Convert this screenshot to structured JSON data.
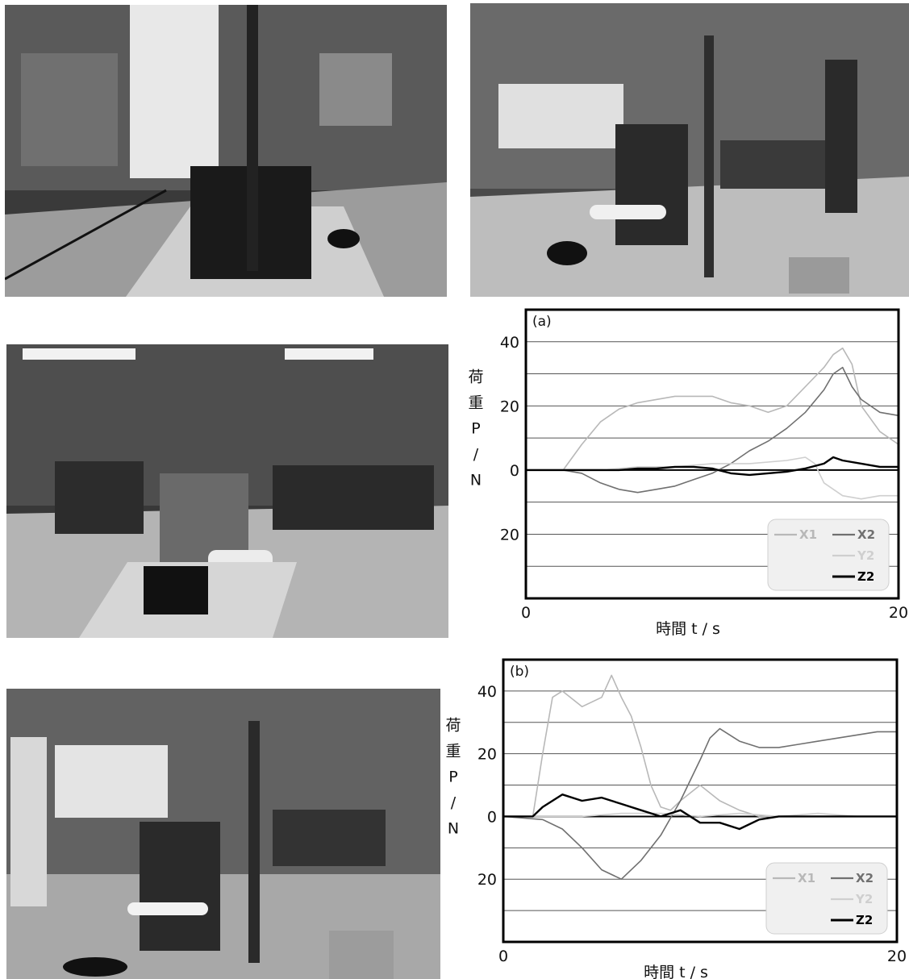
{
  "chart_data": [
    {
      "type": "line",
      "panel_label": "(a)",
      "xlabel": "時間 t/s",
      "ylabel": "荷重 P/N",
      "xlim": [
        0,
        20
      ],
      "ylim": [
        -40,
        50
      ],
      "x_tick_labels": [
        "0",
        "20"
      ],
      "y_tick_labels": [
        "40",
        "20",
        "0",
        "20"
      ],
      "y_tick_values": [
        40,
        20,
        0,
        -20
      ],
      "grid": true,
      "legend_position": "bottom-right",
      "series": [
        {
          "name": "X1",
          "color": "#b8b8b8",
          "width": 1.6,
          "x": [
            0,
            2,
            3,
            4,
            5,
            6,
            7,
            8,
            9,
            10,
            11,
            12,
            13,
            14,
            15,
            16,
            16.5,
            17,
            17.5,
            18,
            19,
            20
          ],
          "y": [
            0,
            0,
            8,
            15,
            19,
            21,
            22,
            23,
            23,
            23,
            21,
            20,
            18,
            20,
            26,
            32,
            36,
            38,
            33,
            20,
            12,
            8
          ]
        },
        {
          "name": "X2",
          "color": "#707070",
          "width": 1.6,
          "x": [
            0,
            2,
            3,
            4,
            5,
            6,
            7,
            8,
            9,
            10,
            11,
            12,
            13,
            14,
            15,
            16,
            16.5,
            17,
            17.5,
            18,
            19,
            20
          ],
          "y": [
            0,
            0,
            -1,
            -4,
            -6,
            -7,
            -6,
            -5,
            -3,
            -1,
            2,
            6,
            9,
            13,
            18,
            25,
            30,
            32,
            26,
            22,
            18,
            17
          ]
        },
        {
          "name": "Y2",
          "color": "#cfcfcf",
          "width": 1.6,
          "x": [
            0,
            2,
            4,
            6,
            8,
            10,
            12,
            14,
            15,
            15.5,
            16,
            17,
            18,
            19,
            20
          ],
          "y": [
            0,
            0,
            0,
            1,
            1,
            2,
            2,
            3,
            4,
            2,
            -4,
            -8,
            -9,
            -8,
            -8
          ]
        },
        {
          "name": "Z2",
          "color": "#000000",
          "width": 2.4,
          "x": [
            0,
            2,
            3,
            4,
            5,
            6,
            7,
            8,
            9,
            10,
            11,
            12,
            13,
            14,
            15,
            16,
            16.5,
            17,
            18,
            19,
            20
          ],
          "y": [
            0,
            0,
            0,
            0,
            0,
            0.5,
            0.5,
            1,
            1,
            0.5,
            -1,
            -1.5,
            -1,
            -0.5,
            0.5,
            2,
            4,
            3,
            2,
            1,
            1
          ]
        }
      ],
      "legend_entries": [
        "X1",
        "X2",
        "Y2",
        "Z2"
      ]
    },
    {
      "type": "line",
      "panel_label": "(b)",
      "xlabel": "時間 t/s",
      "ylabel": "荷重 P/N",
      "xlim": [
        0,
        20
      ],
      "ylim": [
        -40,
        50
      ],
      "x_tick_labels": [
        "0",
        "20"
      ],
      "y_tick_labels": [
        "40",
        "20",
        "0",
        "20"
      ],
      "y_tick_values": [
        40,
        20,
        0,
        -20
      ],
      "grid": true,
      "legend_position": "bottom-right",
      "series": [
        {
          "name": "X1",
          "color": "#b8b8b8",
          "width": 1.6,
          "x": [
            0,
            1.5,
            2,
            2.5,
            3,
            4,
            5,
            5.5,
            6,
            6.5,
            7,
            7.5,
            8,
            8.5,
            9,
            10,
            11,
            12,
            13,
            14,
            16,
            18,
            20
          ],
          "y": [
            0,
            0,
            20,
            38,
            40,
            35,
            38,
            45,
            38,
            32,
            22,
            10,
            3,
            2,
            5,
            10,
            5,
            2,
            0,
            0,
            0,
            0,
            0
          ]
        },
        {
          "name": "X2",
          "color": "#707070",
          "width": 1.6,
          "x": [
            0,
            2,
            3,
            4,
            5,
            6,
            7,
            8,
            9,
            10,
            10.5,
            11,
            12,
            13,
            14,
            15,
            16,
            17,
            18,
            19,
            20
          ],
          "y": [
            0,
            -1,
            -4,
            -10,
            -17,
            -20,
            -14,
            -6,
            5,
            18,
            25,
            28,
            24,
            22,
            22,
            23,
            24,
            25,
            26,
            27,
            27
          ]
        },
        {
          "name": "Y2",
          "color": "#cfcfcf",
          "width": 1.6,
          "x": [
            0,
            2,
            4,
            6,
            8,
            10,
            12,
            14,
            16,
            18,
            20
          ],
          "y": [
            0,
            0,
            0,
            1,
            1,
            0,
            1,
            0,
            1,
            0,
            0
          ]
        },
        {
          "name": "Z2",
          "color": "#000000",
          "width": 2.4,
          "x": [
            0,
            1.5,
            2,
            3,
            4,
            5,
            6,
            7,
            8,
            9,
            10,
            11,
            12,
            13,
            14,
            16,
            18,
            20
          ],
          "y": [
            0,
            0,
            3,
            7,
            5,
            6,
            4,
            2,
            0,
            2,
            -2,
            -2,
            -4,
            -1,
            0,
            0,
            0,
            0
          ]
        }
      ],
      "legend_entries": [
        "X1",
        "X2",
        "Y2",
        "Z2"
      ]
    }
  ]
}
